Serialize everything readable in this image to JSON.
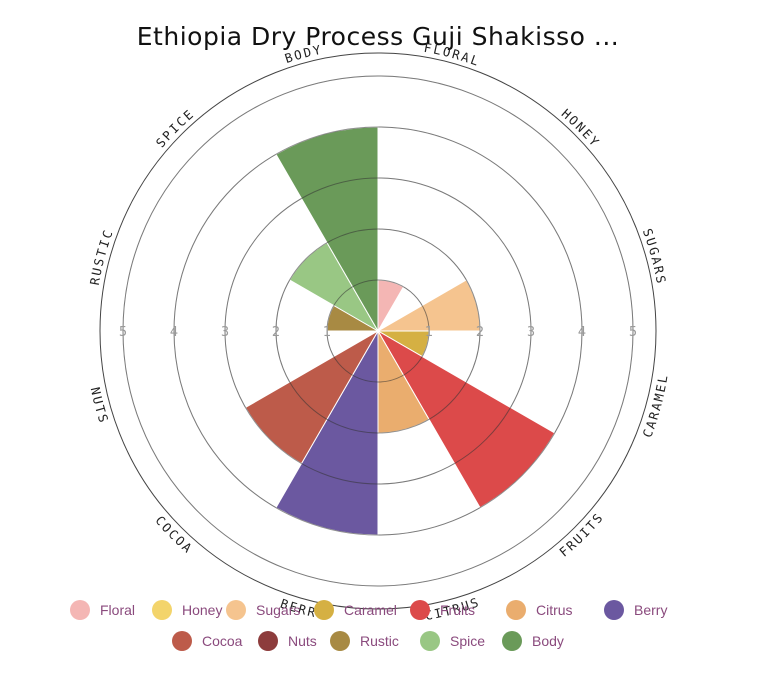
{
  "chart_data": {
    "type": "polar-area",
    "title": "Ethiopia Dry Process Guji Shakisso ...",
    "categories": [
      "Floral",
      "Honey",
      "Sugars",
      "Caramel",
      "Fruits",
      "Citrus",
      "Berry",
      "Cocoa",
      "Nuts",
      "Rustic",
      "Spice",
      "Body"
    ],
    "axis_labels": [
      "FLORAL",
      "HONEY",
      "SUGARS",
      "CARAMEL",
      "FRUITS",
      "CITRUS",
      "BERRY",
      "COCOA",
      "NUTS",
      "RUSTIC",
      "SPICE",
      "BODY"
    ],
    "values": [
      1,
      0,
      2,
      1,
      4,
      2,
      4,
      3,
      0,
      1,
      2,
      4
    ],
    "colors": [
      "#f4b6b4",
      "#f3d46b",
      "#f5c48f",
      "#d5b043",
      "#dc4a4a",
      "#eaad6e",
      "#6b58a0",
      "#bd5b4a",
      "#8d3c3c",
      "#a88a43",
      "#99c784",
      "#6a9a59"
    ],
    "rlim": [
      0,
      5
    ],
    "tick_labels": [
      "1",
      "2",
      "3",
      "4",
      "5"
    ],
    "legend_position": "bottom"
  }
}
